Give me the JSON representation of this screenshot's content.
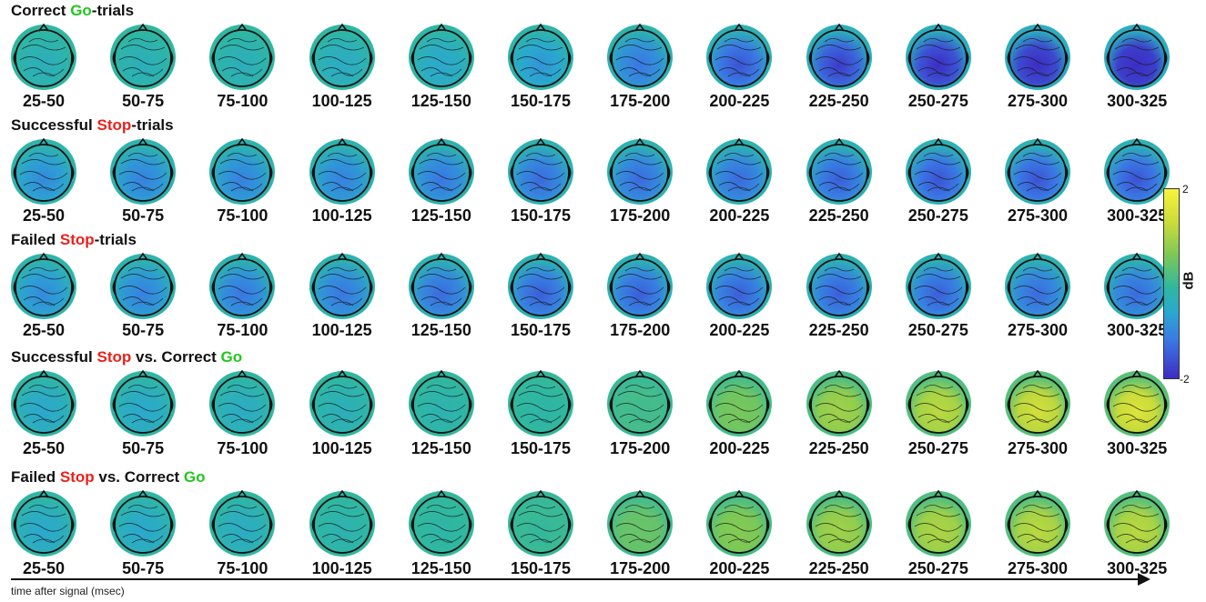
{
  "rows": [
    {
      "prefix": "Correct ",
      "highlight": "Go",
      "hcolor": "green",
      "suffix": "-trials",
      "extra_text": "",
      "extra_highlight": ""
    },
    {
      "prefix": "Successful ",
      "highlight": "Stop",
      "hcolor": "red",
      "suffix": "-trials",
      "extra_text": "",
      "extra_highlight": ""
    },
    {
      "prefix": "Failed ",
      "highlight": "Stop",
      "hcolor": "red",
      "suffix": "-trials",
      "extra_text": "",
      "extra_highlight": ""
    },
    {
      "prefix": "Successful ",
      "highlight": "Stop",
      "hcolor": "red",
      "suffix": " vs. Correct ",
      "extra_text": "",
      "extra_highlight": "Go"
    },
    {
      "prefix": "Failed ",
      "highlight": "Stop",
      "hcolor": "red",
      "suffix": " vs. Correct ",
      "extra_text": "",
      "extra_highlight": "Go"
    }
  ],
  "time_windows": [
    "25-50",
    "50-75",
    "75-100",
    "100-125",
    "125-150",
    "150-175",
    "175-200",
    "200-225",
    "225-250",
    "250-275",
    "275-300",
    "300-325"
  ],
  "colorbar": {
    "max_label": "2",
    "min_label": "-2",
    "unit": "dB"
  },
  "x_axis_label": "time after signal (msec)",
  "colors": {
    "red": "#e8221c",
    "green": "#22c71e"
  },
  "map_levels": [
    [
      -0.1,
      -0.1,
      -0.1,
      -0.15,
      -0.2,
      -0.3,
      -0.45,
      -0.6,
      -0.7,
      -0.8,
      -0.85,
      -0.9
    ],
    [
      -0.35,
      -0.4,
      -0.4,
      -0.4,
      -0.45,
      -0.5,
      -0.5,
      -0.5,
      -0.55,
      -0.6,
      -0.6,
      -0.6
    ],
    [
      -0.35,
      -0.4,
      -0.45,
      -0.45,
      -0.5,
      -0.55,
      -0.55,
      -0.55,
      -0.55,
      -0.55,
      -0.5,
      -0.5
    ],
    [
      -0.2,
      -0.2,
      -0.15,
      -0.1,
      -0.05,
      0.0,
      0.1,
      0.3,
      0.45,
      0.55,
      0.65,
      0.7
    ],
    [
      -0.2,
      -0.2,
      -0.15,
      -0.05,
      0.0,
      0.05,
      0.25,
      0.35,
      0.45,
      0.5,
      0.55,
      0.55
    ]
  ]
}
